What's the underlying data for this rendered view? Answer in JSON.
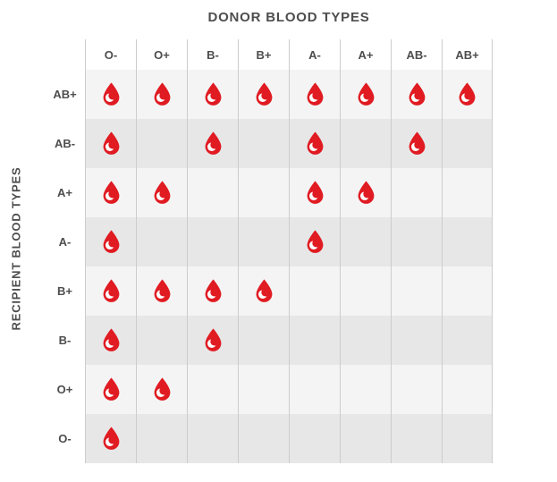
{
  "chart_data": {
    "type": "heatmap",
    "title": "DONOR BLOOD TYPES",
    "ylabel": "RECIPIENT BLOOD TYPES",
    "x_categories": [
      "O-",
      "O+",
      "B-",
      "B+",
      "A-",
      "A+",
      "AB-",
      "AB+"
    ],
    "y_categories": [
      "AB+",
      "AB-",
      "A+",
      "A-",
      "B+",
      "B-",
      "O+",
      "O-"
    ],
    "values": [
      [
        1,
        1,
        1,
        1,
        1,
        1,
        1,
        1
      ],
      [
        1,
        0,
        1,
        0,
        1,
        0,
        1,
        0
      ],
      [
        1,
        1,
        0,
        0,
        1,
        1,
        0,
        0
      ],
      [
        1,
        0,
        0,
        0,
        1,
        0,
        0,
        0
      ],
      [
        1,
        1,
        1,
        1,
        0,
        0,
        0,
        0
      ],
      [
        1,
        0,
        1,
        0,
        0,
        0,
        0,
        0
      ],
      [
        1,
        1,
        0,
        0,
        0,
        0,
        0,
        0
      ],
      [
        1,
        0,
        0,
        0,
        0,
        0,
        0,
        0
      ]
    ],
    "value_meaning": "1 = compatible (red blood drop icon shown), 0 = not compatible (empty cell)",
    "grid": true,
    "legend_position": "none"
  },
  "colors": {
    "drop_red": "#e01b22",
    "row_light": "#f4f4f4",
    "row_dark": "#e7e7e7",
    "grid_line": "#cccccc",
    "text": "#4d4d4d",
    "background": "#ffffff"
  }
}
